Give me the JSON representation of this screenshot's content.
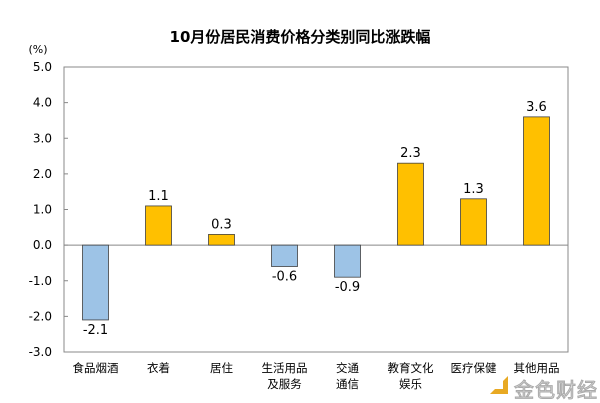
{
  "chart_data": {
    "type": "bar",
    "title": "10月份居民消费价格分类别同比涨跌幅",
    "ylabel": "(%)",
    "xlabel": "",
    "ylim": [
      -3.0,
      5.0
    ],
    "yticks": [
      "5.0",
      "4.0",
      "3.0",
      "2.0",
      "1.0",
      "0.0",
      "-1.0",
      "-2.0",
      "-3.0"
    ],
    "categories": [
      [
        "食品烟酒"
      ],
      [
        "衣着"
      ],
      [
        "居住"
      ],
      [
        "生活用品",
        "及服务"
      ],
      [
        "交通",
        "通信"
      ],
      [
        "教育文化",
        "娱乐"
      ],
      [
        "医疗保健"
      ],
      [
        "其他用品"
      ]
    ],
    "values": [
      -2.1,
      1.1,
      0.3,
      -0.6,
      -0.9,
      2.3,
      1.3,
      3.6
    ],
    "data_labels": [
      "-2.1",
      "1.1",
      "0.3",
      "-0.6",
      "-0.9",
      "2.3",
      "1.3",
      "3.6"
    ],
    "colors": {
      "positive": "#FFC000",
      "negative": "#9DC3E6",
      "border": "#404040"
    },
    "grid": false
  },
  "watermark": "金色财经"
}
